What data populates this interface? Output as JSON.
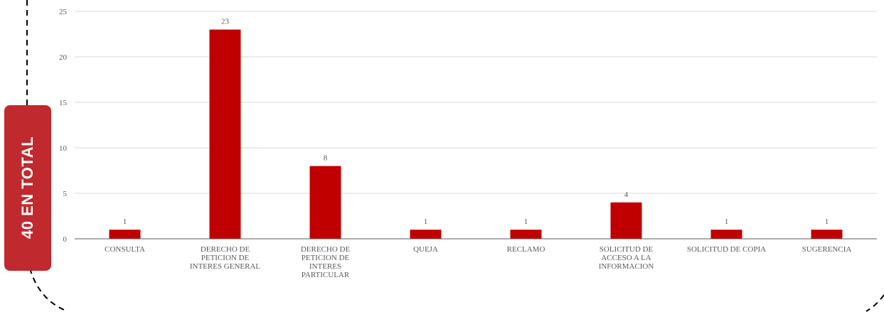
{
  "badge": {
    "text": "40 EN TOTAL",
    "color": "#c0292e"
  },
  "chart_data": {
    "type": "bar",
    "title": "",
    "xlabel": "",
    "ylabel": "",
    "ylim": [
      0,
      25
    ],
    "yticks": [
      0,
      5,
      10,
      15,
      20,
      25
    ],
    "grid": true,
    "legend": "none",
    "bar_color": "#c00000",
    "categories": [
      [
        "CONSULTA"
      ],
      [
        "DERECHO DE",
        "PETICION DE",
        "INTERES GENERAL"
      ],
      [
        "DERECHO DE",
        "PETICION DE",
        "INTERES",
        "PARTICULAR"
      ],
      [
        "QUEJA"
      ],
      [
        "RECLAMO"
      ],
      [
        "SOLICITUD DE",
        "ACCESO A LA",
        "INFORMACION"
      ],
      [
        "SOLICITUD DE COPIA"
      ],
      [
        "SUGERENCIA"
      ]
    ],
    "values": [
      1,
      23,
      8,
      1,
      1,
      4,
      1,
      1
    ]
  }
}
